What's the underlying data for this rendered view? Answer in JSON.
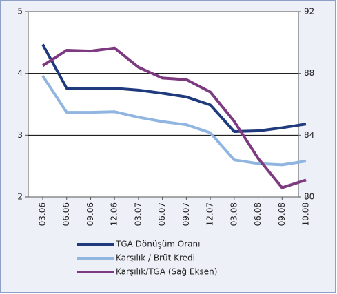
{
  "chart_data": {
    "type": "line",
    "categories": [
      "03.06",
      "06.06",
      "09.06",
      "12.06",
      "03.07",
      "06.07",
      "09.07",
      "12.07",
      "03.08",
      "06.08",
      "09.08",
      "10.08"
    ],
    "series": [
      {
        "name": "TGA Dönüşüm Oranı",
        "color": "#1f3a7d",
        "values": [
          4.47,
          3.76,
          3.76,
          3.76,
          3.73,
          3.68,
          3.62,
          3.49,
          3.06,
          3.07,
          3.12,
          3.18
        ]
      },
      {
        "name": "Karşılık / Brüt Kredi",
        "color": "#8fb5e0",
        "values": [
          3.96,
          3.37,
          3.37,
          3.38,
          3.29,
          3.22,
          3.17,
          3.04,
          2.6,
          2.54,
          2.52,
          2.58
        ]
      },
      {
        "name": "Karşılık/TGA (Sağ Eksen)",
        "color": "#7d3a80",
        "axis": "y2",
        "values": [
          88.5,
          89.5,
          89.45,
          89.65,
          88.4,
          87.7,
          87.6,
          86.8,
          84.9,
          82.5,
          80.6,
          81.1
        ]
      }
    ],
    "ylim": [
      2,
      5
    ],
    "yticks": [
      2,
      3,
      4,
      5
    ],
    "y2lim": [
      80,
      92
    ],
    "y2ticks": [
      80,
      84,
      88,
      92
    ],
    "grid": true,
    "legend": "bottom"
  }
}
